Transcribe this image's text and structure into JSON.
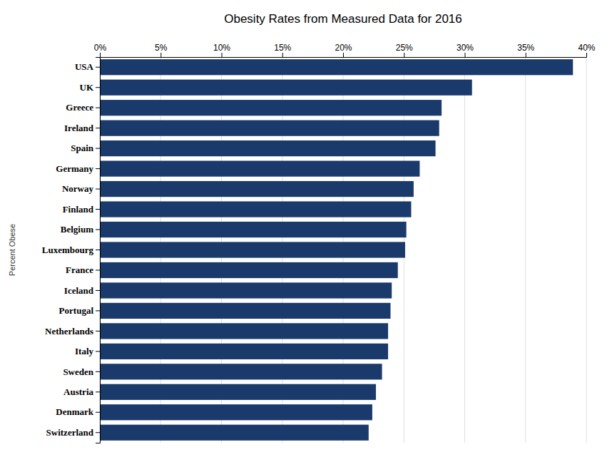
{
  "chart_data": {
    "type": "bar",
    "orientation": "horizontal",
    "title": "Obesity Rates from Measured Data for 2016",
    "ylabel": "Percent Obese",
    "categories": [
      "Switzerland",
      "Denmark",
      "Austria",
      "Sweden",
      "Italy",
      "Netherlands",
      "Portugal",
      "Iceland",
      "France",
      "Luxembourg",
      "Belgium",
      "Finland",
      "Norway",
      "Germany",
      "Spain",
      "Ireland",
      "Greece",
      "UK",
      "USA"
    ],
    "values": [
      22.1,
      22.4,
      22.7,
      23.2,
      23.7,
      23.7,
      23.9,
      24.0,
      24.5,
      25.1,
      25.2,
      25.6,
      25.8,
      26.3,
      27.6,
      27.9,
      28.1,
      30.6,
      38.9
    ],
    "color": "#1a3a6b",
    "xlim": [
      0,
      40
    ],
    "xticks": [
      {
        "value": 0,
        "label": "0%"
      },
      {
        "value": 5,
        "label": "5%"
      },
      {
        "value": 10,
        "label": "10%"
      },
      {
        "value": 15,
        "label": "15%"
      },
      {
        "value": 20,
        "label": "20%"
      },
      {
        "value": 25,
        "label": "25%"
      },
      {
        "value": 30,
        "label": "30%"
      },
      {
        "value": 35,
        "label": "35%"
      },
      {
        "value": 40,
        "label": "40%"
      }
    ],
    "grid": true
  }
}
